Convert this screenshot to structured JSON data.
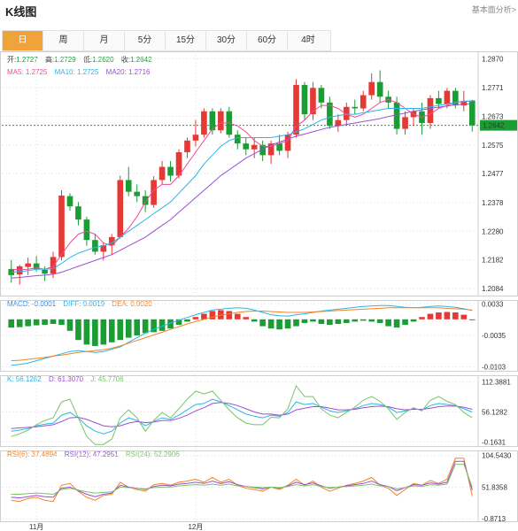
{
  "header": {
    "title": "K线图",
    "link": "基本面分析>"
  },
  "tabs": [
    {
      "label": "日",
      "active": true
    },
    {
      "label": "周",
      "active": false
    },
    {
      "label": "月",
      "active": false
    },
    {
      "label": "5分",
      "active": false
    },
    {
      "label": "15分",
      "active": false
    },
    {
      "label": "30分",
      "active": false
    },
    {
      "label": "60分",
      "active": false
    },
    {
      "label": "4时",
      "active": false
    }
  ],
  "colors": {
    "up": "#e53935",
    "down": "#1a9e34",
    "ma5": "#ee4a9e",
    "ma10": "#2bb6e6",
    "ma20": "#9b4fd3",
    "macd": "#2e8ae6",
    "diff": "#2bb6e6",
    "dea": "#f58220",
    "k": "#2bb6e6",
    "d": "#9b4fd3",
    "j": "#7ac36a",
    "rsi6": "#f58220",
    "rsi12": "#9b4fd3",
    "rsi24": "#7ac36a"
  },
  "info": {
    "ohlc": {
      "open_label": "开:",
      "open": "1.2727",
      "high_label": "高:",
      "high": "1.2729",
      "low_label": "低:",
      "low": "1.2620",
      "close_label": "收:",
      "close": "1.2642"
    },
    "ma": {
      "ma5": "MA5: 1.2725",
      "ma10": "MA10: 1.2725",
      "ma20": "MA20: 1.2716"
    },
    "macd": {
      "macd": "MACD: -0.0001",
      "diff": "DIFF: 0.0019",
      "dea": "DEA: 0.0020"
    },
    "kdj": {
      "k": "K: 56.1282",
      "d": "D: 61.3070",
      "j": "J: 45.7706"
    },
    "rsi": {
      "rsi6": "RSI(6): 37.4894",
      "rsi12": "RSI(12): 47.2951",
      "rsi24": "RSI(24): 52.2906"
    }
  },
  "chart_data": {
    "type": "candlestick",
    "price_axis": {
      "ticks": [
        "1.2870",
        "1.2771",
        "1.2673",
        "1.2575",
        "1.2477",
        "1.2378",
        "1.2280",
        "1.2182",
        "1.2084"
      ],
      "range": [
        1.206,
        1.2895
      ],
      "current": "1.2642"
    },
    "macd_axis": {
      "ticks": [
        "0.0033",
        "-0.0035",
        "-0.0103"
      ],
      "range": [
        -0.0112,
        0.0042
      ]
    },
    "kdj_axis": {
      "ticks": [
        "112.3881",
        "56.1282",
        "-0.1631"
      ],
      "range": [
        -8,
        125
      ]
    },
    "rsi_axis": {
      "ticks": [
        "104.5430",
        "51.8358",
        "-0.8713"
      ],
      "range": [
        -5,
        113
      ]
    },
    "x_labels": [
      {
        "label": "11月",
        "index": 3
      },
      {
        "label": "12月",
        "index": 22
      }
    ],
    "candles": [
      [
        1.2151,
        1.2182,
        1.2105,
        1.213
      ],
      [
        1.2132,
        1.2165,
        1.2098,
        1.216
      ],
      [
        1.2158,
        1.219,
        1.213,
        1.217
      ],
      [
        1.217,
        1.2195,
        1.2142,
        1.215
      ],
      [
        1.2148,
        1.216,
        1.211,
        1.2135
      ],
      [
        1.2135,
        1.221,
        1.212,
        1.2192
      ],
      [
        1.2192,
        1.242,
        1.218,
        1.2402
      ],
      [
        1.24,
        1.241,
        1.235,
        1.2365
      ],
      [
        1.2365,
        1.238,
        1.23,
        1.232
      ],
      [
        1.232,
        1.233,
        1.223,
        1.225
      ],
      [
        1.225,
        1.227,
        1.22,
        1.221
      ],
      [
        1.221,
        1.224,
        1.218,
        1.2232
      ],
      [
        1.2232,
        1.227,
        1.22,
        1.226
      ],
      [
        1.226,
        1.247,
        1.2255,
        1.2455
      ],
      [
        1.2455,
        1.25,
        1.24,
        1.2415
      ],
      [
        1.2415,
        1.244,
        1.238,
        1.24
      ],
      [
        1.24,
        1.242,
        1.2345,
        1.237
      ],
      [
        1.237,
        1.2468,
        1.236,
        1.2455
      ],
      [
        1.2455,
        1.252,
        1.244,
        1.25
      ],
      [
        1.25,
        1.252,
        1.245,
        1.247
      ],
      [
        1.247,
        1.256,
        1.246,
        1.255
      ],
      [
        1.255,
        1.26,
        1.253,
        1.259
      ],
      [
        1.259,
        1.266,
        1.257,
        1.261
      ],
      [
        1.261,
        1.27,
        1.26,
        1.269
      ],
      [
        1.269,
        1.27,
        1.261,
        1.2625
      ],
      [
        1.2625,
        1.27,
        1.2615,
        1.269
      ],
      [
        1.269,
        1.2705,
        1.26,
        1.261
      ],
      [
        1.261,
        1.2625,
        1.256,
        1.258
      ],
      [
        1.258,
        1.26,
        1.254,
        1.256
      ],
      [
        1.256,
        1.26,
        1.253,
        1.2575
      ],
      [
        1.2575,
        1.259,
        1.252,
        1.254
      ],
      [
        1.254,
        1.259,
        1.251,
        1.258
      ],
      [
        1.258,
        1.261,
        1.254,
        1.2555
      ],
      [
        1.2555,
        1.262,
        1.253,
        1.261
      ],
      [
        1.261,
        1.28,
        1.26,
        1.278
      ],
      [
        1.278,
        1.279,
        1.266,
        1.268
      ],
      [
        1.268,
        1.279,
        1.266,
        1.277
      ],
      [
        1.277,
        1.278,
        1.27,
        1.272
      ],
      [
        1.272,
        1.274,
        1.263,
        1.264
      ],
      [
        1.264,
        1.268,
        1.262,
        1.266
      ],
      [
        1.266,
        1.272,
        1.264,
        1.2705
      ],
      [
        1.2705,
        1.273,
        1.268,
        1.27
      ],
      [
        1.27,
        1.276,
        1.269,
        1.2745
      ],
      [
        1.2745,
        1.282,
        1.273,
        1.279
      ],
      [
        1.279,
        1.283,
        1.272,
        1.274
      ],
      [
        1.274,
        1.276,
        1.27,
        1.272
      ],
      [
        1.272,
        1.274,
        1.261,
        1.263
      ],
      [
        1.263,
        1.269,
        1.261,
        1.267
      ],
      [
        1.267,
        1.27,
        1.264,
        1.269
      ],
      [
        1.269,
        1.272,
        1.261,
        1.265
      ],
      [
        1.265,
        1.2745,
        1.263,
        1.2735
      ],
      [
        1.2735,
        1.276,
        1.27,
        1.2715
      ],
      [
        1.2715,
        1.277,
        1.27,
        1.276
      ],
      [
        1.276,
        1.277,
        1.27,
        1.271
      ],
      [
        1.271,
        1.276,
        1.269,
        1.2725
      ],
      [
        1.2727,
        1.2729,
        1.262,
        1.2642
      ]
    ],
    "ma5": [
      1.215,
      1.2148,
      1.215,
      1.2155,
      1.215,
      1.216,
      1.22,
      1.224,
      1.227,
      1.228,
      1.227,
      1.224,
      1.223,
      1.226,
      1.229,
      1.233,
      1.238,
      1.242,
      1.244,
      1.244,
      1.247,
      1.251,
      1.255,
      1.259,
      1.263,
      1.265,
      1.265,
      1.264,
      1.262,
      1.259,
      1.257,
      1.257,
      1.258,
      1.259,
      1.264,
      1.266,
      1.269,
      1.271,
      1.271,
      1.27,
      1.268,
      1.267,
      1.268,
      1.27,
      1.272,
      1.273,
      1.272,
      1.27,
      1.268,
      1.267,
      1.268,
      1.27,
      1.271,
      1.272,
      1.2725,
      1.2725
    ],
    "ma10": [
      1.214,
      1.2142,
      1.2145,
      1.215,
      1.215,
      1.2152,
      1.217,
      1.219,
      1.2205,
      1.2215,
      1.2225,
      1.223,
      1.224,
      1.226,
      1.228,
      1.23,
      1.232,
      1.234,
      1.236,
      1.238,
      1.241,
      1.244,
      1.247,
      1.251,
      1.254,
      1.257,
      1.259,
      1.26,
      1.26,
      1.26,
      1.26,
      1.26,
      1.2605,
      1.261,
      1.262,
      1.263,
      1.2645,
      1.266,
      1.267,
      1.2675,
      1.268,
      1.268,
      1.2685,
      1.269,
      1.2695,
      1.27,
      1.27,
      1.27,
      1.27,
      1.27,
      1.2705,
      1.271,
      1.2715,
      1.272,
      1.2723,
      1.2725
    ],
    "ma20": [
      1.212,
      1.2122,
      1.2125,
      1.2128,
      1.213,
      1.2133,
      1.214,
      1.215,
      1.216,
      1.217,
      1.218,
      1.219,
      1.22,
      1.2215,
      1.223,
      1.2245,
      1.226,
      1.228,
      1.23,
      1.232,
      1.2345,
      1.237,
      1.2395,
      1.242,
      1.2445,
      1.247,
      1.249,
      1.251,
      1.253,
      1.2545,
      1.256,
      1.2575,
      1.2585,
      1.2595,
      1.2605,
      1.2612,
      1.262,
      1.2628,
      1.2635,
      1.264,
      1.2645,
      1.265,
      1.2655,
      1.266,
      1.2665,
      1.2672,
      1.2678,
      1.2684,
      1.269,
      1.2695,
      1.27,
      1.2704,
      1.2708,
      1.2712,
      1.2714,
      1.2716
    ],
    "macd_hist": [
      -0.0018,
      -0.0017,
      -0.0015,
      -0.0013,
      -0.0012,
      -0.001,
      -0.0012,
      -0.0025,
      -0.0045,
      -0.0055,
      -0.0058,
      -0.0055,
      -0.005,
      -0.0045,
      -0.004,
      -0.0035,
      -0.003,
      -0.0028,
      -0.0025,
      -0.002,
      -0.0012,
      -0.0005,
      0.0005,
      0.0012,
      0.0018,
      0.002,
      0.0018,
      0.0012,
      0.0005,
      -0.0005,
      -0.0015,
      -0.002,
      -0.0022,
      -0.002,
      -0.0015,
      -0.0008,
      -0.0005,
      -0.001,
      -0.0012,
      -0.001,
      -0.0008,
      -0.0005,
      -0.0003,
      -0.0005,
      -0.0008,
      -0.0015,
      -0.0018,
      -0.0012,
      -0.0005,
      0.0005,
      0.0012,
      0.0015,
      0.0016,
      0.0015,
      0.001,
      -0.0001
    ],
    "macd_diff": [
      -0.01,
      -0.0098,
      -0.0095,
      -0.009,
      -0.0085,
      -0.008,
      -0.0075,
      -0.007,
      -0.0068,
      -0.007,
      -0.0072,
      -0.007,
      -0.0065,
      -0.006,
      -0.005,
      -0.004,
      -0.003,
      -0.0022,
      -0.0015,
      -0.0008,
      -0.0002,
      0.0004,
      0.001,
      0.0015,
      0.002,
      0.0022,
      0.0024,
      0.0025,
      0.0024,
      0.002,
      0.0015,
      0.001,
      0.0008,
      0.0007,
      0.001,
      0.0012,
      0.0015,
      0.0018,
      0.002,
      0.0022,
      0.0024,
      0.0026,
      0.0028,
      0.0029,
      0.003,
      0.003,
      0.0028,
      0.0026,
      0.0025,
      0.0026,
      0.0028,
      0.0029,
      0.0028,
      0.0026,
      0.0023,
      0.0019
    ],
    "macd_dea": [
      -0.009,
      -0.0089,
      -0.0087,
      -0.0085,
      -0.0083,
      -0.008,
      -0.0078,
      -0.0075,
      -0.0072,
      -0.007,
      -0.0068,
      -0.0066,
      -0.0063,
      -0.0058,
      -0.0052,
      -0.0046,
      -0.004,
      -0.0034,
      -0.0028,
      -0.0022,
      -0.0016,
      -0.001,
      -0.0005,
      0.0,
      0.0005,
      0.0009,
      0.0012,
      0.0015,
      0.0017,
      0.0018,
      0.0018,
      0.0017,
      0.0016,
      0.0015,
      0.0015,
      0.0015,
      0.0016,
      0.0017,
      0.0018,
      0.0019,
      0.002,
      0.0021,
      0.0022,
      0.0023,
      0.0024,
      0.0025,
      0.0025,
      0.0025,
      0.0025,
      0.0025,
      0.0025,
      0.0025,
      0.0024,
      0.0023,
      0.0022,
      0.002
    ],
    "kdj_k": [
      20,
      22,
      25,
      30,
      33,
      35,
      50,
      55,
      45,
      30,
      20,
      15,
      20,
      35,
      45,
      40,
      30,
      38,
      45,
      42,
      50,
      60,
      70,
      72,
      80,
      75,
      68,
      60,
      52,
      48,
      45,
      50,
      48,
      55,
      75,
      70,
      72,
      65,
      58,
      55,
      58,
      62,
      68,
      72,
      70,
      65,
      55,
      58,
      62,
      60,
      68,
      72,
      70,
      68,
      62,
      56
    ],
    "kdj_d": [
      25,
      26,
      27,
      28,
      30,
      32,
      38,
      45,
      46,
      42,
      36,
      30,
      28,
      30,
      35,
      38,
      36,
      37,
      40,
      40,
      44,
      50,
      58,
      64,
      72,
      74,
      72,
      68,
      62,
      56,
      52,
      52,
      50,
      52,
      60,
      63,
      66,
      66,
      63,
      60,
      60,
      61,
      64,
      66,
      67,
      66,
      62,
      60,
      61,
      61,
      63,
      66,
      67,
      67,
      65,
      61
    ],
    "kdj_j": [
      10,
      15,
      22,
      32,
      40,
      45,
      75,
      80,
      45,
      10,
      -5,
      -5,
      5,
      45,
      60,
      45,
      20,
      40,
      55,
      45,
      62,
      80,
      95,
      90,
      95,
      78,
      60,
      45,
      35,
      32,
      32,
      46,
      45,
      62,
      105,
      85,
      85,
      62,
      50,
      45,
      55,
      65,
      78,
      85,
      76,
      62,
      42,
      55,
      64,
      58,
      78,
      85,
      76,
      70,
      55,
      45
    ],
    "rsi6": [
      30,
      28,
      33,
      35,
      30,
      28,
      55,
      58,
      45,
      35,
      30,
      38,
      40,
      60,
      52,
      48,
      45,
      56,
      58,
      55,
      60,
      62,
      65,
      60,
      68,
      60,
      65,
      55,
      50,
      48,
      45,
      52,
      48,
      55,
      65,
      55,
      62,
      52,
      45,
      50,
      55,
      58,
      62,
      68,
      55,
      50,
      38,
      48,
      58,
      55,
      63,
      58,
      65,
      100,
      100,
      37
    ],
    "rsi12": [
      35,
      34,
      36,
      38,
      36,
      35,
      50,
      52,
      46,
      40,
      36,
      40,
      42,
      55,
      52,
      50,
      48,
      53,
      55,
      54,
      57,
      58,
      60,
      58,
      62,
      58,
      61,
      56,
      53,
      51,
      49,
      52,
      50,
      54,
      60,
      56,
      59,
      54,
      50,
      52,
      54,
      56,
      58,
      62,
      56,
      53,
      46,
      51,
      56,
      55,
      59,
      57,
      60,
      95,
      95,
      47
    ],
    "rsi24": [
      40,
      40,
      41,
      42,
      41,
      40,
      48,
      50,
      47,
      44,
      42,
      43,
      44,
      52,
      51,
      50,
      49,
      51,
      52,
      52,
      54,
      55,
      56,
      55,
      57,
      55,
      57,
      54,
      53,
      52,
      51,
      52,
      51,
      53,
      56,
      54,
      56,
      53,
      51,
      52,
      53,
      54,
      55,
      57,
      54,
      53,
      49,
      51,
      54,
      53,
      56,
      55,
      57,
      90,
      90,
      52
    ]
  }
}
